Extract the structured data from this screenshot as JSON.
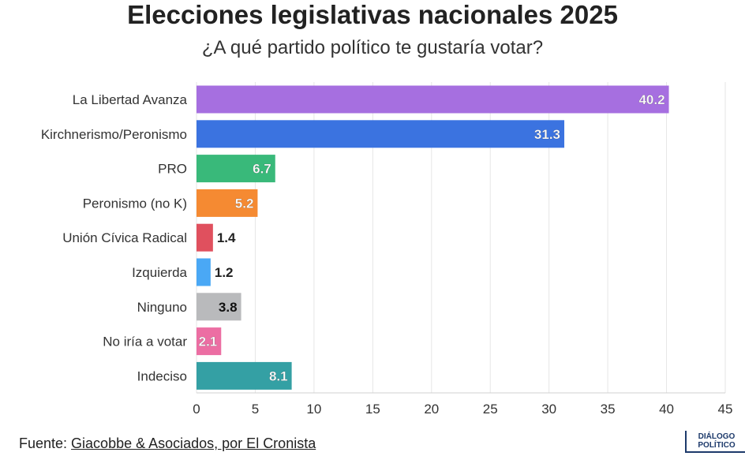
{
  "title": "Elecciones legislativas nacionales 2025",
  "subtitle": "¿A qué partido político te gustaría votar?",
  "source_prefix": "Fuente: ",
  "source_link": "Giacobbe & Asociados, por El Cronista",
  "logo": {
    "line1": "DIÁLOGO",
    "line2": "POLÍTICO"
  },
  "chart_data": {
    "type": "bar",
    "orientation": "horizontal",
    "categories": [
      "La Libertad Avanza",
      "Kirchnerismo/Peronismo",
      "PRO",
      "Peronismo (no K)",
      "Unión Cívica Radical",
      "Izquierda",
      "Ninguno",
      "No iría a votar",
      "Indeciso"
    ],
    "values": [
      40.2,
      31.3,
      6.7,
      5.2,
      1.4,
      1.2,
      3.8,
      2.1,
      8.1
    ],
    "labels": [
      "40.2",
      "31.3",
      "6.7",
      "5.2",
      "1.4",
      "1.2",
      "3.8",
      "2.1",
      "8.1"
    ],
    "colors": [
      "#a66fe0",
      "#3b73e0",
      "#39b97a",
      "#f58a32",
      "#e0505e",
      "#4aa8f5",
      "#b9babc",
      "#ec6ea3",
      "#34a0a4"
    ],
    "xlim": [
      0,
      45
    ],
    "xticks": [
      0,
      5,
      10,
      15,
      20,
      25,
      30,
      35,
      40,
      45
    ],
    "grid": true
  }
}
